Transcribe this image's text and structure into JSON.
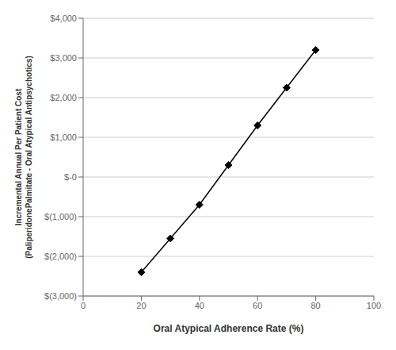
{
  "chart_data": {
    "type": "line",
    "xlabel": "Oral Atypical Adherence Rate (%)",
    "ylabel": "Incremental Annual Per Patient Cost\n(PaliperidоnePalmitate - Oral Atypical Antipsychotics)",
    "x": [
      20,
      30,
      40,
      50,
      60,
      70,
      80
    ],
    "values": [
      -2400,
      -1550,
      -700,
      300,
      1300,
      2250,
      3200
    ],
    "color": "#000000",
    "marker": "diamond",
    "xlim": [
      0,
      100
    ],
    "ylim": [
      -3000,
      4000
    ],
    "xticks": [
      0,
      20,
      40,
      60,
      80,
      100
    ],
    "yticks": [
      {
        "value": -3000,
        "label": "$(3,000)"
      },
      {
        "value": -2000,
        "label": "$(2,000)"
      },
      {
        "value": -1000,
        "label": "$(1,000)"
      },
      {
        "value": 0,
        "label": "$-0"
      },
      {
        "value": 1000,
        "label": "$1,000"
      },
      {
        "value": 2000,
        "label": "$2,000"
      },
      {
        "value": 3000,
        "label": "$3,000"
      },
      {
        "value": 4000,
        "label": "$4,000"
      }
    ],
    "grid": true
  }
}
